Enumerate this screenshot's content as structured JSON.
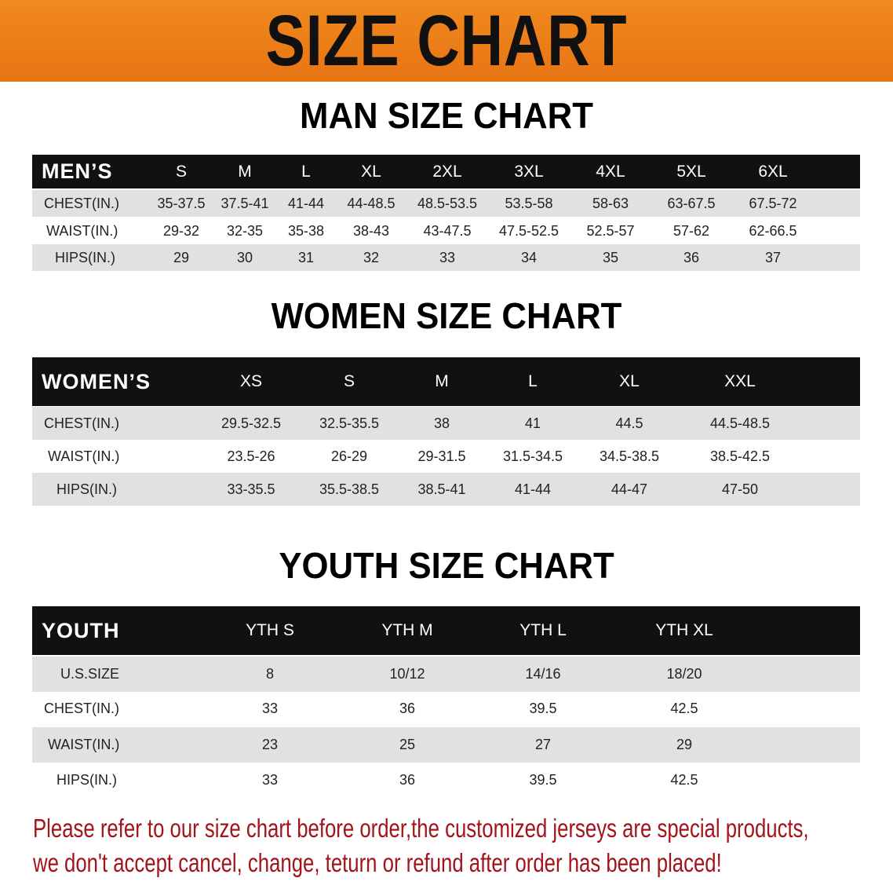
{
  "banner": {
    "title": "SIZE CHART",
    "color": "#ee7f1a"
  },
  "men": {
    "title": "MAN SIZE CHART",
    "header": [
      "MEN’S",
      "S",
      "M",
      "L",
      "XL",
      "2XL",
      "3XL",
      "4XL",
      "5XL",
      "6XL"
    ],
    "rows": [
      [
        "CHEST(IN.)",
        "35-37.5",
        "37.5-41",
        "41-44",
        "44-48.5",
        "48.5-53.5",
        "53.5-58",
        "58-63",
        "63-67.5",
        "67.5-72"
      ],
      [
        "WAIST(IN.)",
        "29-32",
        "32-35",
        "35-38",
        "38-43",
        "43-47.5",
        "47.5-52.5",
        "52.5-57",
        "57-62",
        "62-66.5"
      ],
      [
        "HIPS(IN.)",
        "29",
        "30",
        "31",
        "32",
        "33",
        "34",
        "35",
        "36",
        "37"
      ]
    ]
  },
  "women": {
    "title": "WOMEN SIZE CHART",
    "header": [
      "WOMEN’S",
      "XS",
      "S",
      "M",
      "L",
      "XL",
      "XXL"
    ],
    "rows": [
      [
        "CHEST(IN.)",
        "29.5-32.5",
        "32.5-35.5",
        "38",
        "41",
        "44.5",
        "44.5-48.5"
      ],
      [
        "WAIST(IN.)",
        "23.5-26",
        "26-29",
        "29-31.5",
        "31.5-34.5",
        "34.5-38.5",
        "38.5-42.5"
      ],
      [
        "HIPS(IN.)",
        "33-35.5",
        "35.5-38.5",
        "38.5-41",
        "41-44",
        "44-47",
        "47-50"
      ]
    ]
  },
  "youth": {
    "title": "YOUTH SIZE CHART",
    "header": [
      "YOUTH",
      "YTH S",
      "YTH M",
      "YTH L",
      "YTH XL"
    ],
    "rows": [
      [
        "U.S.SIZE",
        "8",
        "10/12",
        "14/16",
        "18/20"
      ],
      [
        "CHEST(IN.)",
        "33",
        "36",
        "39.5",
        "42.5"
      ],
      [
        "WAIST(IN.)",
        "23",
        "25",
        "27",
        "29"
      ],
      [
        "HIPS(IN.)",
        "33",
        "36",
        "39.5",
        "42.5"
      ]
    ]
  },
  "notice": {
    "line1": "Please refer to our size chart before order,the customized jerseys are special products,",
    "line2": "we don't accept cancel, change, teturn or refund after order has been placed!",
    "color": "#a3141a"
  }
}
